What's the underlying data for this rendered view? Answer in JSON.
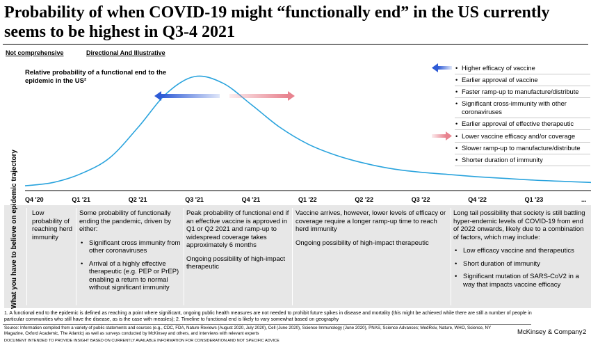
{
  "title": "Probability of when COVID-19 might “functionally end” in the US currently seems to be highest in Q3-4 2021",
  "tags": [
    "Not comprehensive",
    "Directional And Illustrative"
  ],
  "chart_data": {
    "type": "line",
    "ylabel": "Relative probability of a functional end to the epidemic in the US²",
    "categories": [
      "Q4 '20",
      "Q1 '21",
      "Q2 '21",
      "Q3 '21",
      "Q4 '21",
      "Q1 '22",
      "Q2 '22",
      "Q3 '22",
      "Q4 '22",
      "Q1 '23",
      "..."
    ],
    "series": [
      {
        "x": [
          0,
          0.5,
          1,
          1.5,
          2,
          2.5,
          3,
          3.5,
          4,
          4.5,
          5,
          5.5,
          6,
          6.5,
          7,
          7.5,
          8,
          8.5,
          9,
          9.5,
          10
        ],
        "values": [
          3,
          6,
          14,
          28,
          55,
          85,
          100,
          94,
          75,
          55,
          40,
          30,
          23,
          18,
          15,
          13,
          11,
          9.5,
          8,
          7,
          6
        ]
      }
    ],
    "ylim": [
      0,
      110
    ],
    "grid": false,
    "colors": {
      "curve": "#29a3dd",
      "accelerate_arrow": "#2e5bd6",
      "delay_arrow": "#e8838f"
    }
  },
  "legend": {
    "accelerate": [
      "Higher efficacy of vaccine",
      "Earlier approval of vaccine",
      "Faster ramp-up to manufacture/distribute",
      "Significant cross-immunity with other coronaviruses",
      "Earlier approval of effective therapeutic"
    ],
    "delay": [
      "Lower vaccine efficacy and/or coverage",
      "Slower ramp-up to manufacture/distribute",
      "Shorter duration of immunity"
    ]
  },
  "panel": {
    "side_label": "What you have to believe on epidemic trajectory",
    "col1": {
      "text": "Low probability of reaching herd immunity"
    },
    "col2": {
      "intro": "Some probability of functionally ending the pandemic, driven by either:",
      "items": [
        "Significant cross immunity from other coronaviruses",
        "Arrival of a highly effective therapeutic (e.g. PEP or PrEP) enabling a return to normal without significant immunity"
      ]
    },
    "col3": {
      "p1": "Peak probability of functional end if an effective vaccine is approved in Q1 or Q2 2021 and ramp-up to widespread coverage takes approximately 6 months",
      "p2": "Ongoing possibility of high-impact therapeutic"
    },
    "col4": {
      "p1": "Vaccine arrives, however, lower levels of efficacy or coverage require a longer ramp-up time to reach herd immunity",
      "p2": "Ongoing possibility of high-impact therapeutic"
    },
    "col5": {
      "intro": "Long tail possibility that society is still battling hyper-endemic levels of COVID-19 from end of 2022 onwards, likely due to a combination of factors, which may include:",
      "items": [
        "Low efficacy vaccine and therapeutics",
        "Short duration of immunity",
        "Significant mutation of SARS-CoV2 in a way that impacts vaccine efficacy"
      ]
    }
  },
  "footnote": "1. A functional end to the epidemic is defined as reaching a point where significant, ongoing public health measures are not needed to prohibit future spikes in disease and mortality (this might be achieved while there are still a number of people in particular communities who still have the disease, as is the case with measles); 2. Timeline to functional end is likely to vary somewhat based on geography",
  "source": "Source: Information compiled from a variety of public statements and sources (e.g., CDC, FDA, Nature Reviews (August 2020, July 2020), Cell (June 2020), Science Immunology (June 2020), PNAS, Science Advances; MedRxiv, Nature, WHO, Science, NY Magazine, Oxford Academic, The Atlantic) as well as surveys conducted by McKinsey and others, and interviews with relevant experts",
  "disclaimer": "DOCUMENT INTENDED TO PROVIDE INSIGHT BASED ON CURRENTLY AVAILABLE INFORMATION FOR CONSIDERATION AND NOT SPECIFIC ADVICE",
  "brand": "McKinsey & Company",
  "page_number": "2"
}
